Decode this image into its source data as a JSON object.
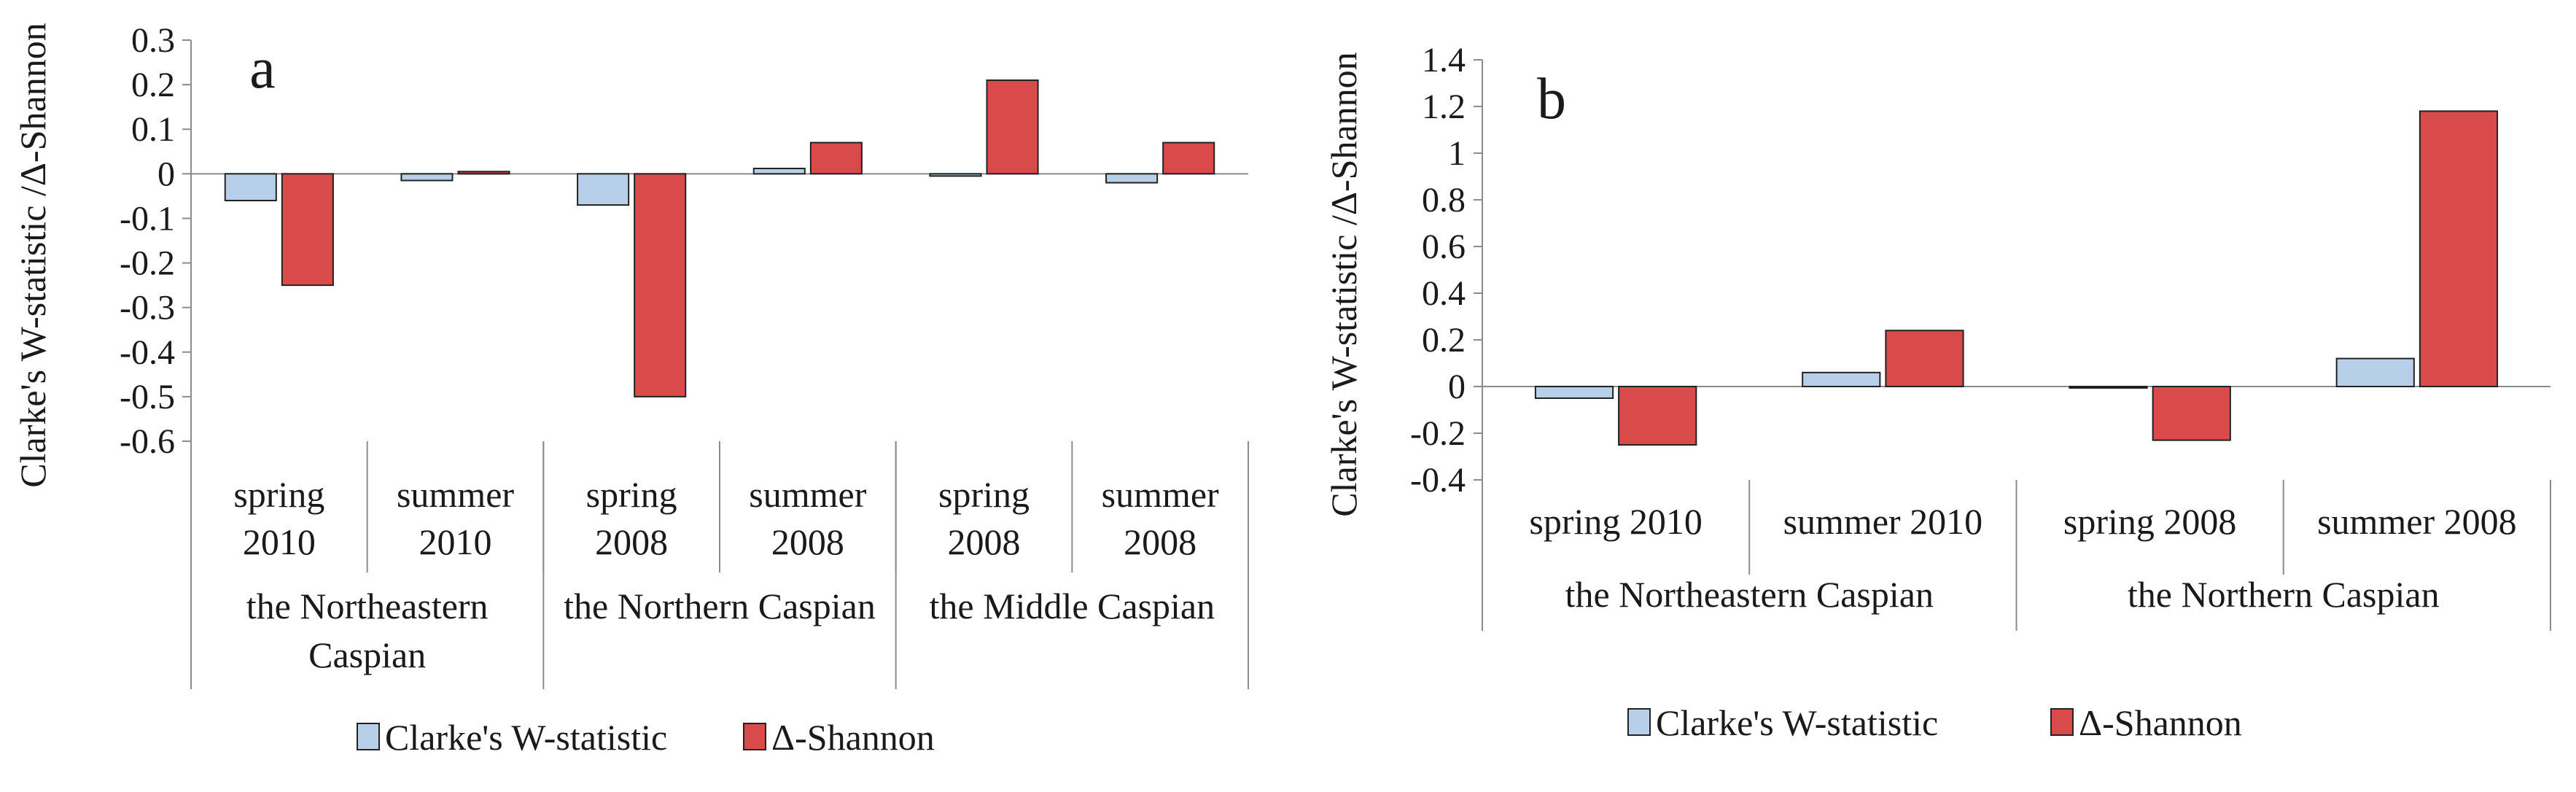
{
  "colors": {
    "clarke": "#b7cfe8",
    "shannon": "#d94a4a",
    "stroke": "#222222",
    "axis": "#8c8c8c"
  },
  "legend": {
    "clarke": "Clarke's W-statistic",
    "shannon": "Δ-Shannon"
  },
  "chart_data": [
    {
      "type": "bar",
      "panel_label": "a",
      "ylabel": "Clarke's W-statistic /Δ-Shannon",
      "ylim": [
        -0.6,
        0.3
      ],
      "ytick_step": 0.1,
      "yticks": [
        "0.3",
        "0.2",
        "0.1",
        "0",
        "-0.1",
        "-0.2",
        "-0.3",
        "-0.4",
        "-0.5",
        "-0.6"
      ],
      "categories": [
        [
          "spring",
          "2010"
        ],
        [
          "summer",
          "2010"
        ],
        [
          "spring",
          "2008"
        ],
        [
          "summer",
          "2008"
        ],
        [
          "spring",
          "2008"
        ],
        [
          "summer",
          "2008"
        ]
      ],
      "groups": [
        {
          "lines": [
            "the Northeastern",
            "Caspian"
          ],
          "span": 2
        },
        {
          "lines": [
            "the Northern Caspian"
          ],
          "span": 2
        },
        {
          "lines": [
            "the Middle Caspian"
          ],
          "span": 2
        }
      ],
      "series": [
        {
          "name": "Clarke's W-statistic",
          "values": [
            -0.06,
            -0.015,
            -0.07,
            0.012,
            -0.005,
            -0.02
          ]
        },
        {
          "name": "Δ-Shannon",
          "values": [
            -0.25,
            0.005,
            -0.5,
            0.07,
            0.21,
            0.07
          ]
        }
      ]
    },
    {
      "type": "bar",
      "panel_label": "b",
      "ylabel": "Clarke's W-statistic /Δ-Shannon",
      "ylim": [
        -0.4,
        1.4
      ],
      "ytick_step": 0.2,
      "yticks": [
        "1.4",
        "1.2",
        "1",
        "0.8",
        "0.6",
        "0.4",
        "0.2",
        "0",
        "-0.2",
        "-0.4"
      ],
      "categories": [
        [
          "spring 2010"
        ],
        [
          "summer 2010"
        ],
        [
          "spring 2008"
        ],
        [
          "summer 2008"
        ]
      ],
      "groups": [
        {
          "lines": [
            "the Northeastern Caspian"
          ],
          "span": 2
        },
        {
          "lines": [
            "the Northern Caspian"
          ],
          "span": 2
        }
      ],
      "series": [
        {
          "name": "Clarke's W-statistic",
          "values": [
            -0.05,
            0.06,
            0.0,
            0.12
          ]
        },
        {
          "name": "Δ-Shannon",
          "values": [
            -0.25,
            0.24,
            -0.23,
            1.18
          ]
        }
      ]
    }
  ]
}
